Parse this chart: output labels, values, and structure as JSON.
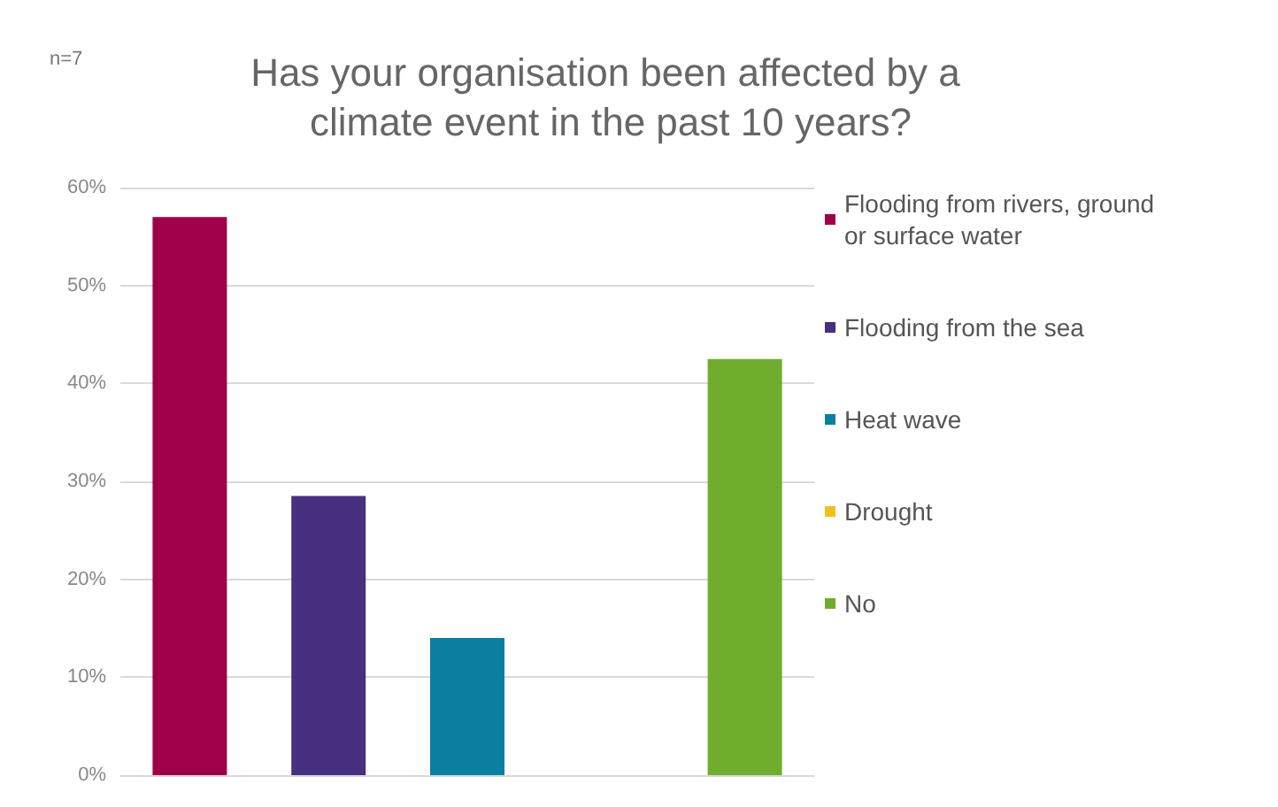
{
  "chart_data": {
    "type": "bar",
    "title": "Has your organisation been affected by a climate event in the past 10 years?",
    "annotations": [
      "n=7"
    ],
    "categories": [
      null,
      null,
      null,
      null,
      null
    ],
    "series": [
      {
        "name": "Flooding from rivers, ground or surface water",
        "color": "#a0004a",
        "values": [
          57,
          null,
          null,
          null,
          null
        ]
      },
      {
        "name": "Flooding from the sea",
        "color": "#46307f",
        "values": [
          null,
          28.5,
          null,
          null,
          null
        ]
      },
      {
        "name": "Heat wave",
        "color": "#0a7fa0",
        "values": [
          null,
          null,
          14,
          null,
          null
        ]
      },
      {
        "name": "Drought",
        "color": "#f0c020",
        "values": [
          null,
          null,
          null,
          0,
          null
        ]
      },
      {
        "name": "No",
        "color": "#70ad2e",
        "values": [
          null,
          null,
          null,
          null,
          42.5
        ]
      }
    ],
    "ylim": [
      0,
      60
    ],
    "yticks": [
      {
        "value": 0,
        "label": "0%"
      },
      {
        "value": 10,
        "label": "10%"
      },
      {
        "value": 20,
        "label": "20%"
      },
      {
        "value": 30,
        "label": "30%"
      },
      {
        "value": 40,
        "label": "40%"
      },
      {
        "value": 50,
        "label": "50%"
      },
      {
        "value": 60,
        "label": "60%"
      }
    ],
    "grid": "y",
    "legend": "right"
  }
}
